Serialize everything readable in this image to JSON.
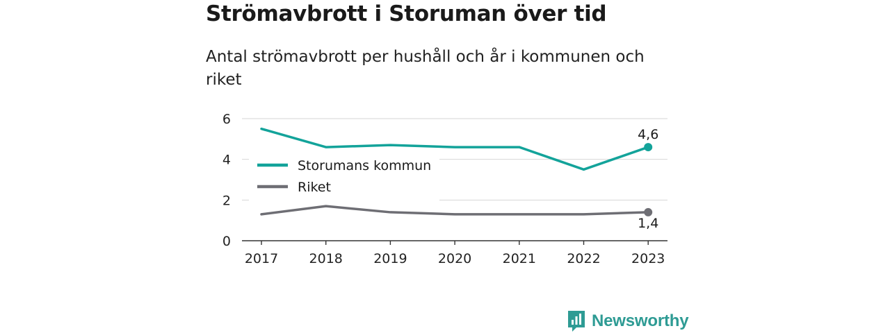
{
  "title": "Strömavbrott i Storuman över tid",
  "subtitle": "Antal strömavbrott per hushåll och år i kommunen och riket",
  "brand": {
    "name": "Newsworthy",
    "color": "#2e9b94"
  },
  "chart_data": {
    "type": "line",
    "x": [
      "2017",
      "2018",
      "2019",
      "2020",
      "2021",
      "2022",
      "2023"
    ],
    "ylim": [
      0,
      6
    ],
    "yticks": [
      "0",
      "2",
      "4",
      "6"
    ],
    "grid": true,
    "legend_position": "center-left",
    "series": [
      {
        "name": "Storumans kommun",
        "color": "#13a39a",
        "values": [
          5.5,
          4.6,
          4.7,
          4.6,
          4.6,
          3.5,
          4.6
        ],
        "end_label": "4,6"
      },
      {
        "name": "Riket",
        "color": "#6e6e74",
        "values": [
          1.3,
          1.7,
          1.4,
          1.3,
          1.3,
          1.3,
          1.4
        ],
        "end_label": "1,4"
      }
    ]
  }
}
